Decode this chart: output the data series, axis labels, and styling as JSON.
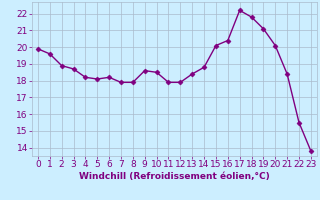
{
  "x": [
    0,
    1,
    2,
    3,
    4,
    5,
    6,
    7,
    8,
    9,
    10,
    11,
    12,
    13,
    14,
    15,
    16,
    17,
    18,
    19,
    20,
    21,
    22,
    23
  ],
  "y": [
    19.9,
    19.6,
    18.9,
    18.7,
    18.2,
    18.1,
    18.2,
    17.9,
    17.9,
    18.6,
    18.5,
    17.9,
    17.9,
    18.4,
    18.8,
    20.1,
    20.4,
    22.2,
    21.8,
    21.1,
    20.1,
    18.4,
    15.5,
    13.8
  ],
  "line_color": "#800080",
  "marker": "D",
  "marker_size": 2.5,
  "bg_color": "#cceeff",
  "grid_color": "#aabbcc",
  "xlabel": "Windchill (Refroidissement éolien,°C)",
  "xlim": [
    -0.5,
    23.5
  ],
  "ylim": [
    13.5,
    22.7
  ],
  "yticks": [
    14,
    15,
    16,
    17,
    18,
    19,
    20,
    21,
    22
  ],
  "xticks": [
    0,
    1,
    2,
    3,
    4,
    5,
    6,
    7,
    8,
    9,
    10,
    11,
    12,
    13,
    14,
    15,
    16,
    17,
    18,
    19,
    20,
    21,
    22,
    23
  ],
  "xlabel_fontsize": 6.5,
  "tick_fontsize": 6.5,
  "label_color": "#800080",
  "linewidth": 1.0
}
